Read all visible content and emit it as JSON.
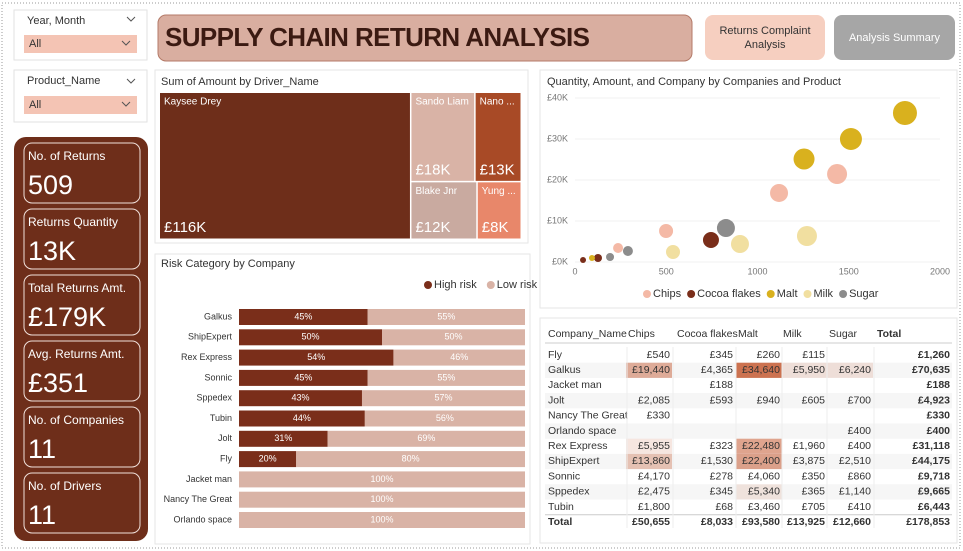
{
  "filters": [
    {
      "label": "Year, Month",
      "value": "All"
    },
    {
      "label": "Product_Name",
      "value": "All"
    }
  ],
  "header": {
    "title": "SUPPLY CHAIN RETURN ANALYSIS"
  },
  "buttons": [
    "Returns Complaint Analysis",
    "Analysis Summary"
  ],
  "cards": [
    {
      "label": "No. of Returns",
      "value": "509"
    },
    {
      "label": "Returns Quantity",
      "value": "13K"
    },
    {
      "label": "Total Returns Amt.",
      "value": "£179K"
    },
    {
      "label": "Avg. Returns Amt.",
      "value": "£351"
    },
    {
      "label": "No. of Companies",
      "value": "11"
    },
    {
      "label": "No. of Drivers",
      "value": "11"
    }
  ],
  "chart_data": [
    {
      "type": "treemap",
      "title": "Sum of Amount by Driver_Name",
      "categories": [
        "Kaysee Drey",
        "Sando Liam",
        "Nano ...",
        "Blake Jnr",
        "Yung ..."
      ],
      "values": [
        116000,
        18000,
        13000,
        12000,
        8000
      ],
      "value_labels": [
        "£116K",
        "£18K",
        "£13K",
        "£12K",
        "£8K"
      ],
      "colors": [
        "#6e2e1a",
        "#d9b3a6",
        "#a84a26",
        "#c9aaa0",
        "#e8876a"
      ]
    },
    {
      "type": "bar",
      "title": "Risk Category by Company",
      "orientation": "horizontal",
      "stacked": true,
      "xlim": [
        0,
        100
      ],
      "categories": [
        "Galkus",
        "ShipExpert",
        "Rex Express",
        "Sonnic",
        "Sppedex",
        "Tubin",
        "Jolt",
        "Fly",
        "Jacket man",
        "Nancy The Great",
        "Orlando space"
      ],
      "series": [
        {
          "name": "High risk",
          "color": "#7a2e1a",
          "values": [
            45,
            50,
            54,
            45,
            43,
            44,
            31,
            20,
            null,
            null,
            null
          ],
          "value_labels": [
            "45%",
            "50%",
            "54%",
            "45%",
            "43%",
            "44%",
            "31%",
            "20%",
            null,
            null,
            null
          ]
        },
        {
          "name": "Low risk",
          "color": "#d9b3a6",
          "values": [
            55,
            50,
            46,
            55,
            57,
            56,
            69,
            80,
            100,
            100,
            100
          ],
          "value_labels": [
            "55%",
            "50%",
            "46%",
            "55%",
            "57%",
            "56%",
            "69%",
            "80%",
            "100%",
            "100%",
            "100%"
          ]
        }
      ]
    },
    {
      "type": "scatter",
      "title": "Quantity, Amount, and Company by Companies and Product",
      "xlim": [
        0,
        2000
      ],
      "xticks": [
        0,
        500,
        1000,
        1500,
        2000
      ],
      "ylim": [
        0,
        40000
      ],
      "yticks": [
        {
          "value": 0,
          "label": "£0K"
        },
        {
          "value": 10000,
          "label": "£10K"
        },
        {
          "value": 20000,
          "label": "£20K"
        },
        {
          "value": 30000,
          "label": "£30K"
        },
        {
          "value": 40000,
          "label": "£40K"
        }
      ],
      "grid": true,
      "series": [
        {
          "name": "Chips",
          "color": "#f4b9a6",
          "x": [
            1118,
            1436,
            499,
            236
          ],
          "values": [
            16830,
            21460,
            7560,
            3410
          ],
          "sizes": [
            661,
            816,
            400,
            204
          ]
        },
        {
          "name": "Cocoa flakes",
          "color": "#7a2e1a",
          "x": [
            745,
            126,
            44
          ],
          "values": [
            5370,
            980,
            490
          ],
          "sizes": [
            522,
            131,
            73
          ]
        },
        {
          "name": "Malt",
          "color": "#d9b11e",
          "x": [
            1808,
            1512,
            1255,
            93
          ],
          "values": [
            36340,
            30000,
            25120,
            975
          ],
          "sizes": [
            1176,
            988,
            900,
            73
          ]
        },
        {
          "name": "Milk",
          "color": "#f1dfa0",
          "x": [
            1271,
            904,
            537
          ],
          "values": [
            6340,
            4390,
            2440
          ],
          "sizes": [
            816,
            661,
            400
          ]
        },
        {
          "name": "Sugar",
          "color": "#8c8c8c",
          "x": [
            827,
            290,
            192
          ],
          "values": [
            8290,
            2680,
            1220
          ],
          "sizes": [
            661,
            204,
            131
          ]
        }
      ]
    }
  ],
  "table": {
    "columns": [
      "Company_Name",
      "Chips",
      "Cocoa flakes",
      "Malt",
      "Milk",
      "Sugar",
      "Total"
    ],
    "rows": [
      [
        "Fly",
        "£540",
        "£345",
        "£260",
        "£115",
        null,
        "£1,260"
      ],
      [
        "Galkus",
        "£19,440",
        "£4,365",
        "£34,640",
        "£5,950",
        "£6,240",
        "£70,635"
      ],
      [
        "Jacket man",
        null,
        "£188",
        null,
        null,
        null,
        "£188"
      ],
      [
        "Jolt",
        "£2,085",
        "£593",
        "£940",
        "£605",
        "£700",
        "£4,923"
      ],
      [
        "Nancy The Great",
        "£330",
        null,
        null,
        null,
        null,
        "£330"
      ],
      [
        "Orlando space",
        null,
        null,
        null,
        null,
        "£400",
        "£400"
      ],
      [
        "Rex Express",
        "£5,955",
        "£323",
        "£22,480",
        "£1,960",
        "£400",
        "£31,118"
      ],
      [
        "ShipExpert",
        "£13,860",
        "£1,530",
        "£22,400",
        "£3,875",
        "£2,510",
        "£44,175"
      ],
      [
        "Sonnic",
        "£4,170",
        "£278",
        "£4,060",
        "£350",
        "£860",
        "£9,718"
      ],
      [
        "Sppedex",
        "£2,475",
        "£345",
        "£5,340",
        "£365",
        "£1,140",
        "£9,665"
      ],
      [
        "Tubin",
        "£1,800",
        "£68",
        "£3,460",
        "£705",
        "£410",
        "£6,443"
      ],
      [
        "Total",
        "£50,655",
        "£8,033",
        "£93,580",
        "£13,925",
        "£12,660",
        "£178,853"
      ]
    ]
  }
}
